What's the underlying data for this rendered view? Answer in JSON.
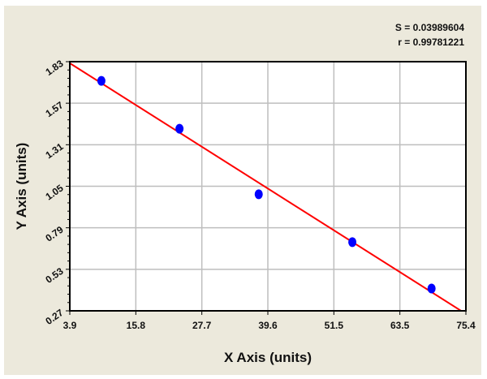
{
  "chart_data": {
    "type": "scatter",
    "title": "",
    "xlabel": "X Axis (units)",
    "ylabel": "Y Axis (units)",
    "xlim": [
      3.9,
      75.4
    ],
    "ylim": [
      0.27,
      1.83
    ],
    "xticks": [
      "3.9",
      "15.8",
      "27.7",
      "39.6",
      "51.5",
      "63.5",
      "75.4"
    ],
    "yticks": [
      "0.27",
      "0.53",
      "0.79",
      "1.05",
      "1.31",
      "1.57",
      "1.83"
    ],
    "grid": true,
    "points": [
      {
        "x": 9.6,
        "y": 1.71
      },
      {
        "x": 23.7,
        "y": 1.41
      },
      {
        "x": 38.0,
        "y": 1.0
      },
      {
        "x": 54.9,
        "y": 0.7
      },
      {
        "x": 69.2,
        "y": 0.41
      }
    ],
    "fit_line": {
      "slope": -0.02195,
      "intercept": 1.906
    },
    "annotations": {
      "s": "S = 0.03989604",
      "r": "r = 0.99781221"
    },
    "colors": {
      "points": "#0000FF",
      "fit": "#FF0000",
      "background": "#ECE9DC",
      "grid": "#BEBEBE"
    }
  }
}
